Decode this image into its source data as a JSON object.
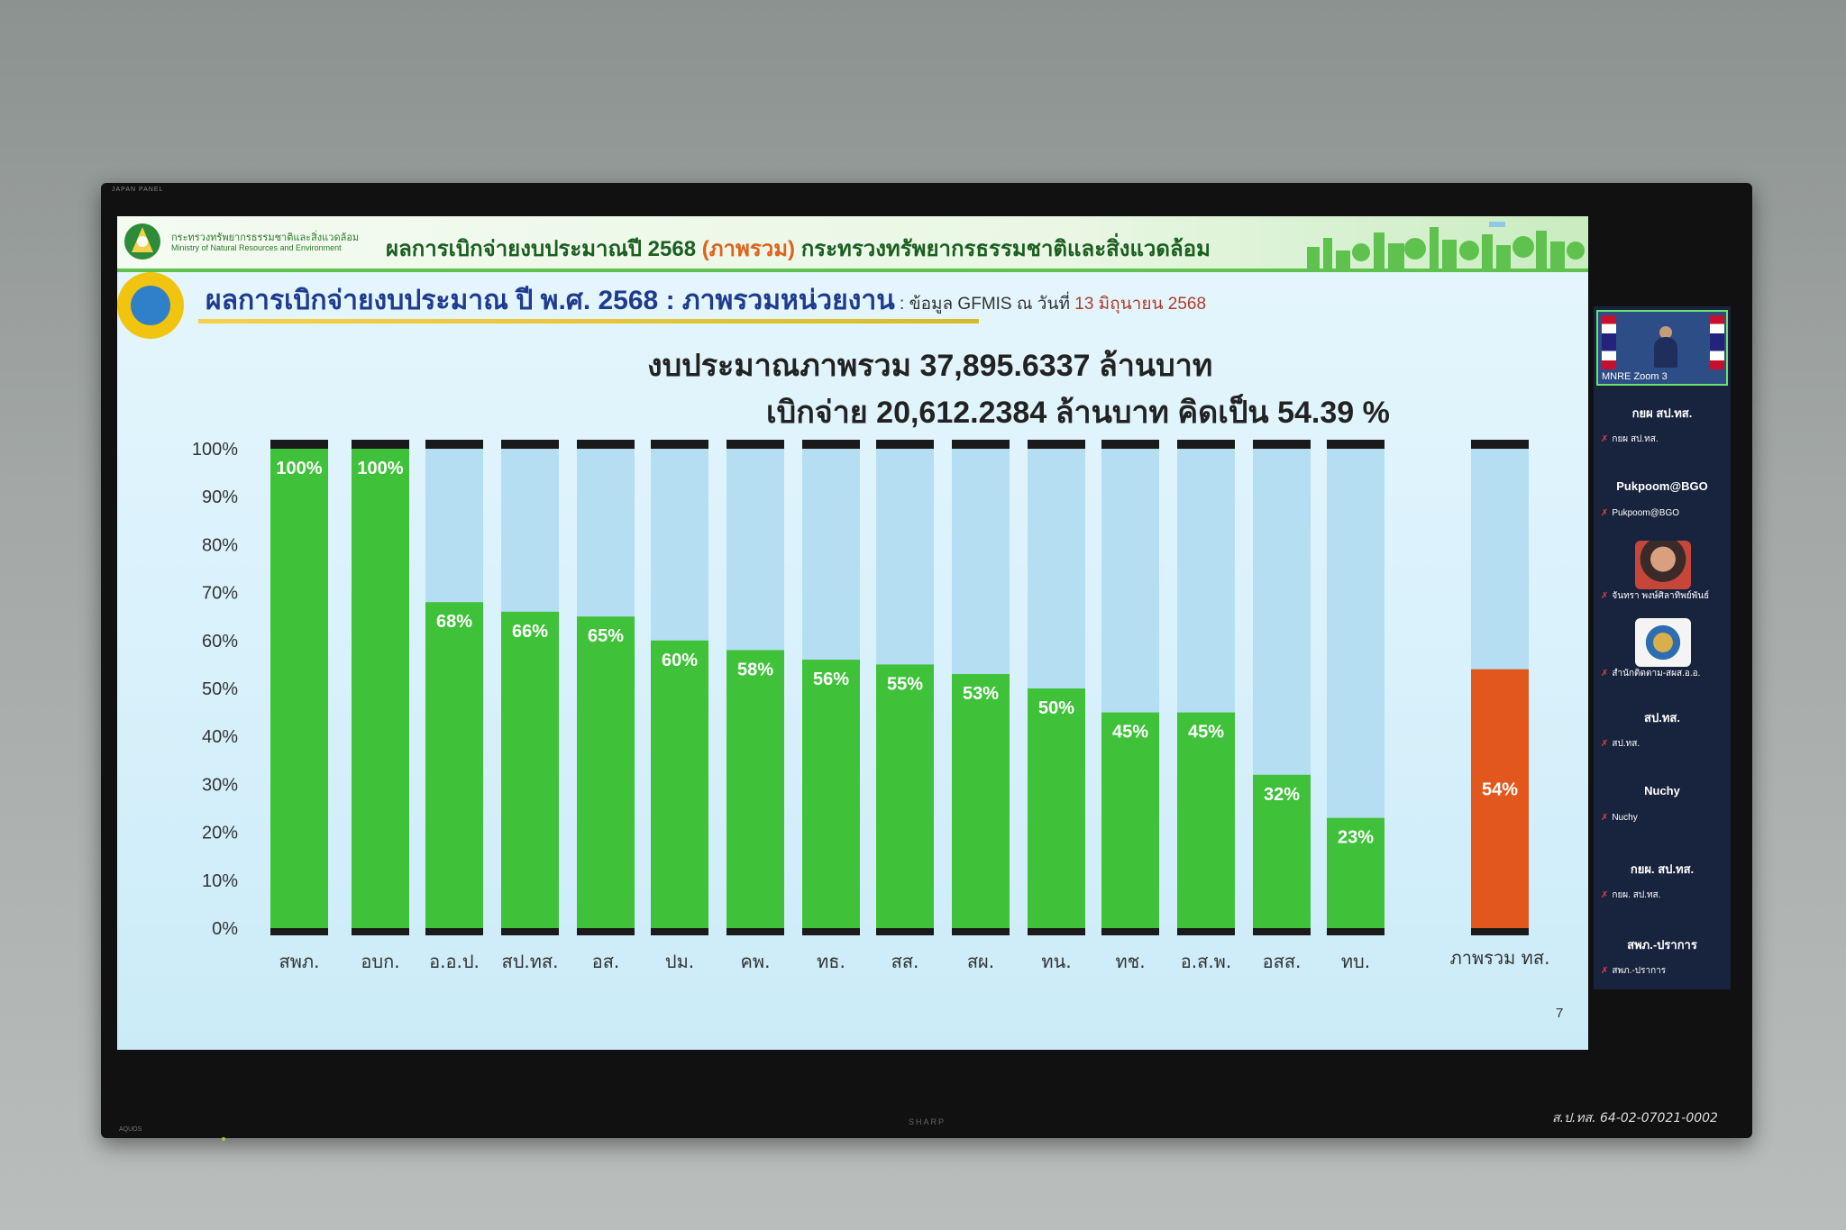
{
  "tv": {
    "brand_top": "JAPAN PANEL",
    "brand_bottom": "SHARP",
    "brand_aquos": "AQUOS",
    "asset_label": "ส.ป.ทส. 64-02-07021-0002"
  },
  "banner": {
    "ministry_th": "กระทรวงทรัพยากรธรรมชาติและสิ่งแวดล้อม",
    "ministry_en": "Ministry of Natural Resources and Environment",
    "title_pre": "ผลการเบิกจ่ายงบประมาณปี 2568 ",
    "title_hl": "(ภาพรวม)",
    "title_post": " กระทรวงทรัพยากรธรรมชาติและสิ่งแวดล้อม"
  },
  "section": {
    "title": "ผลการเบิกจ่ายงบประมาณ ปี พ.ศ. 2568 : ภาพรวมหน่วยงาน",
    "note": " : ข้อมูล GFMIS ณ วันที่ ",
    "date": "13 มิถุนายน 2568"
  },
  "summary": {
    "line1": "งบประมาณภาพรวม  37,895.6337 ล้านบาท",
    "line2": "เบิกจ่าย  20,612.2384 ล้านบาท  คิดเป็น 54.39 %"
  },
  "slide_number": "7",
  "colors": {
    "bar_green": "#3fc23a",
    "bar_total": "#e2571e",
    "bar_remaining": "#b6def2",
    "bar_cap": "#1a1a1a"
  },
  "chart_data": {
    "type": "bar",
    "stacked": true,
    "categories": [
      "สพภ.",
      "อบก.",
      "อ.อ.ป.",
      "สป.ทส.",
      "อส.",
      "ปม.",
      "คพ.",
      "ทธ.",
      "สส.",
      "สผ.",
      "ทน.",
      "ทช.",
      "อ.ส.พ.",
      "อสส.",
      "ทบ.",
      "ภาพรวม ทส."
    ],
    "values": [
      100,
      100,
      68,
      66,
      65,
      60,
      58,
      56,
      55,
      53,
      50,
      45,
      45,
      32,
      23,
      54
    ],
    "value_labels": [
      "100%",
      "100%",
      "68%",
      "66%",
      "65%",
      "60%",
      "58%",
      "56%",
      "55%",
      "53%",
      "50%",
      "45%",
      "45%",
      "32%",
      "23%",
      "54%"
    ],
    "yticks": [
      "0%",
      "10%",
      "20%",
      "30%",
      "40%",
      "50%",
      "60%",
      "70%",
      "80%",
      "90%",
      "100%"
    ],
    "ylim": [
      0,
      100
    ],
    "grid": false,
    "legend": false
  },
  "zoom": {
    "video_label": "MNRE Zoom 3",
    "participants": [
      {
        "name": "กยผ สป.ทส.",
        "tag": "กยผ สป.ทส."
      },
      {
        "name": "Pukpoom@BGO",
        "tag": "Pukpoom@BGO"
      },
      {
        "name": "",
        "tag": "จันทรา พงษ์ศิลาทิพย์พันธ์"
      },
      {
        "name": "",
        "tag": "สำนักติดตาม-สผส.อ.อ."
      },
      {
        "name": "สป.ทส.",
        "tag": "สป.ทส."
      },
      {
        "name": "Nuchy",
        "tag": "Nuchy"
      },
      {
        "name": "กยผ. สป.ทส.",
        "tag": "กยผ. สป.ทส."
      },
      {
        "name": "สพภ.-ปราการ",
        "tag": "สพภ.-ปราการ"
      }
    ]
  }
}
